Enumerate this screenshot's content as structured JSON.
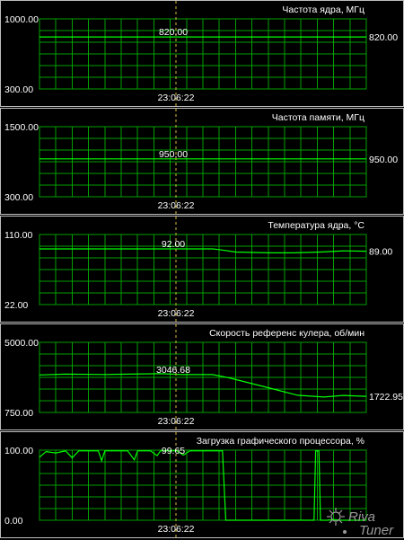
{
  "time_label": "23:06:22",
  "panels": [
    {
      "title": "Частота ядра, МГц",
      "y_max": "1000.00",
      "y_min": "300.00",
      "cursor_value": "820.00",
      "current_value": "820.00",
      "range": [
        300,
        1000
      ],
      "series": [
        [
          0,
          820
        ],
        [
          1,
          820
        ]
      ]
    },
    {
      "title": "Частота памяти, МГц",
      "y_max": "1500.00",
      "y_min": "300.00",
      "cursor_value": "950.00",
      "current_value": "950.00",
      "range": [
        300,
        1500
      ],
      "series": [
        [
          0,
          950
        ],
        [
          1,
          950
        ]
      ]
    },
    {
      "title": "Температура ядра, °C",
      "y_max": "110.00",
      "y_min": "22.00",
      "cursor_value": "92.00",
      "current_value": "89.00",
      "range": [
        22,
        110
      ],
      "series": [
        [
          0,
          92
        ],
        [
          0.1,
          92
        ],
        [
          0.3,
          92
        ],
        [
          0.53,
          92
        ],
        [
          0.55,
          91
        ],
        [
          0.6,
          88
        ],
        [
          0.7,
          87
        ],
        [
          0.78,
          87
        ],
        [
          0.86,
          88
        ],
        [
          0.93,
          89.5
        ],
        [
          1,
          89
        ]
      ]
    },
    {
      "title": "Скорость референс кулера, об/мин",
      "y_max": "5000.00",
      "y_min": "750.00",
      "cursor_value": "3046.68",
      "current_value": "1722.95",
      "range": [
        750,
        5000
      ],
      "series": [
        [
          0,
          3020
        ],
        [
          0.08,
          3070
        ],
        [
          0.2,
          3050
        ],
        [
          0.37,
          3100
        ],
        [
          0.44,
          3046
        ],
        [
          0.53,
          3046
        ],
        [
          0.58,
          2850
        ],
        [
          0.7,
          2250
        ],
        [
          0.79,
          1790
        ],
        [
          0.87,
          1680
        ],
        [
          0.93,
          1780
        ],
        [
          1,
          1723
        ]
      ]
    },
    {
      "title": "Загрузка графического процессора, %",
      "y_max": "100.00",
      "y_min": "0.00",
      "cursor_value": "99.65",
      "current_value": "",
      "range": [
        0,
        100
      ],
      "series": [
        [
          0,
          90
        ],
        [
          0.02,
          98
        ],
        [
          0.05,
          96
        ],
        [
          0.08,
          99
        ],
        [
          0.1,
          89
        ],
        [
          0.12,
          99
        ],
        [
          0.18,
          99
        ],
        [
          0.19,
          85
        ],
        [
          0.2,
          99
        ],
        [
          0.27,
          99
        ],
        [
          0.29,
          86
        ],
        [
          0.3,
          99
        ],
        [
          0.34,
          99
        ],
        [
          0.36,
          92
        ],
        [
          0.37,
          99
        ],
        [
          0.42,
          99
        ],
        [
          0.44,
          93
        ],
        [
          0.46,
          99
        ],
        [
          0.55,
          99
        ],
        [
          0.56,
          99
        ],
        [
          0.57,
          0
        ],
        [
          0.84,
          0
        ],
        [
          0.845,
          99
        ],
        [
          0.855,
          99
        ],
        [
          0.86,
          0
        ],
        [
          0.88,
          0
        ],
        [
          0.9,
          1
        ],
        [
          0.92,
          0
        ],
        [
          1,
          0
        ]
      ]
    }
  ],
  "watermark": "Riva Tuner"
}
